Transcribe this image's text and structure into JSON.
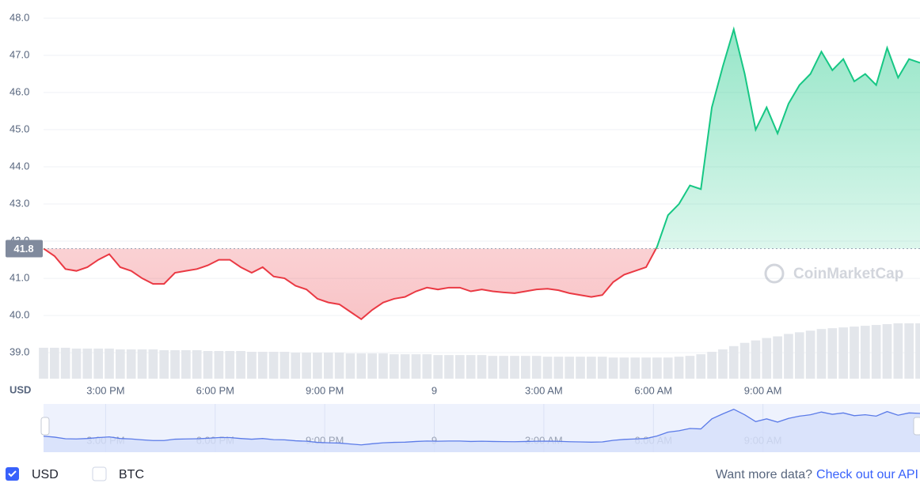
{
  "chart_data": {
    "type": "line",
    "y_label": "USD",
    "watermark": "CoinMarketCap",
    "xlim": [
      13.3,
      37.3
    ],
    "xticks": [
      {
        "value": 15,
        "label": "3:00 PM"
      },
      {
        "value": 18,
        "label": "6:00 PM"
      },
      {
        "value": 21,
        "label": "9:00 PM"
      },
      {
        "value": 24,
        "label": "9"
      },
      {
        "value": 27,
        "label": "3:00 AM"
      },
      {
        "value": 30,
        "label": "6:00 AM"
      },
      {
        "value": 33,
        "label": "9:00 AM"
      }
    ],
    "ylim": [
      38.3,
      48.17
    ],
    "yticks": [
      {
        "value": 39,
        "label": "39.0"
      },
      {
        "value": 40,
        "label": "40.0"
      },
      {
        "value": 41,
        "label": "41.0"
      },
      {
        "value": 42,
        "label": "42.0"
      },
      {
        "value": 43,
        "label": "43.0"
      },
      {
        "value": 44,
        "label": "44.0"
      },
      {
        "value": 45,
        "label": "45.0"
      },
      {
        "value": 46,
        "label": "46.0"
      },
      {
        "value": 47,
        "label": "47.0"
      },
      {
        "value": 48,
        "label": "48.0"
      }
    ],
    "grid": true,
    "base": {
      "value": 41.8,
      "label": "41.8"
    },
    "x": [
      13.3,
      13.6,
      13.9,
      14.2,
      14.5,
      14.8,
      15.1,
      15.4,
      15.7,
      16.0,
      16.3,
      16.6,
      16.9,
      17.2,
      17.5,
      17.8,
      18.1,
      18.4,
      18.7,
      19.0,
      19.3,
      19.6,
      19.9,
      20.2,
      20.5,
      20.8,
      21.1,
      21.4,
      21.7,
      22.0,
      22.3,
      22.6,
      22.9,
      23.2,
      23.5,
      23.8,
      24.1,
      24.4,
      24.7,
      25.0,
      25.3,
      25.6,
      25.9,
      26.2,
      26.5,
      26.8,
      27.1,
      27.4,
      27.7,
      28.0,
      28.3,
      28.6,
      28.9,
      29.2,
      29.5,
      29.8,
      30.1,
      30.4,
      30.7,
      31.0,
      31.3,
      31.6,
      31.9,
      32.2,
      32.5,
      32.8,
      33.1,
      33.4,
      33.7,
      34.0,
      34.3,
      34.6,
      34.9,
      35.2,
      35.5,
      35.8,
      36.1,
      36.4,
      36.7,
      37.0,
      37.3
    ],
    "series": [
      {
        "name": "USD",
        "color_up": "#16c784",
        "color_down": "#ea3943",
        "values": [
          41.8,
          41.6,
          41.25,
          41.2,
          41.3,
          41.5,
          41.65,
          41.3,
          41.2,
          41.0,
          40.85,
          40.85,
          41.15,
          41.2,
          41.25,
          41.35,
          41.5,
          41.5,
          41.3,
          41.15,
          41.3,
          41.05,
          41.0,
          40.8,
          40.7,
          40.45,
          40.35,
          40.3,
          40.1,
          39.9,
          40.15,
          40.35,
          40.45,
          40.5,
          40.65,
          40.75,
          40.7,
          40.75,
          40.75,
          40.65,
          40.7,
          40.65,
          40.62,
          40.6,
          40.65,
          40.7,
          40.72,
          40.68,
          40.6,
          40.55,
          40.5,
          40.55,
          40.9,
          41.1,
          41.2,
          41.3,
          41.85,
          42.7,
          43.0,
          43.5,
          43.4,
          45.6,
          46.7,
          47.7,
          46.5,
          45.0,
          45.6,
          44.9,
          45.7,
          46.2,
          46.5,
          47.1,
          46.6,
          46.9,
          46.3,
          46.5,
          46.2,
          47.2,
          46.4,
          46.9,
          46.8
        ]
      }
    ],
    "volume": [
      38,
      38,
      38,
      37,
      37,
      37,
      37,
      36,
      36,
      36,
      36,
      35,
      35,
      35,
      35,
      34,
      34,
      34,
      34,
      33,
      33,
      33,
      33,
      32,
      32,
      32,
      32,
      32,
      31,
      31,
      31,
      31,
      30,
      30,
      30,
      30,
      29,
      29,
      29,
      29,
      29,
      28,
      28,
      28,
      28,
      28,
      27,
      27,
      27,
      27,
      27,
      27,
      26,
      26,
      26,
      26,
      26,
      26,
      27,
      28,
      30,
      33,
      36,
      40,
      44,
      47,
      50,
      52,
      55,
      57,
      59,
      61,
      62,
      63,
      64,
      65,
      66,
      67,
      68,
      68,
      68
    ]
  },
  "toggles": [
    {
      "label": "USD",
      "checked": true
    },
    {
      "label": "BTC",
      "checked": false
    }
  ],
  "footer": {
    "text": "Want more data?",
    "link": "Check out our API"
  }
}
